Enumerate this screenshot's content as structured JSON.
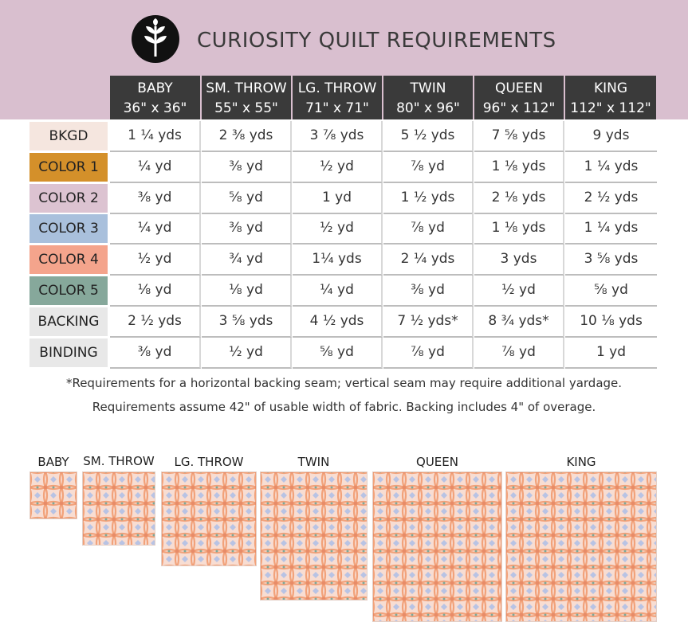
{
  "header": {
    "title": "CURIOSITY QUILT REQUIREMENTS"
  },
  "table": {
    "columns": [
      {
        "name": "BABY",
        "size": "36\" x 36\""
      },
      {
        "name": "SM. THROW",
        "size": "55\" x 55\""
      },
      {
        "name": "LG. THROW",
        "size": "71\" x 71\""
      },
      {
        "name": "TWIN",
        "size": "80\" x 96\""
      },
      {
        "name": "QUEEN",
        "size": "96\" x 112\""
      },
      {
        "name": "KING",
        "size": "112\" x 112\""
      }
    ],
    "rows": [
      {
        "label": "BKGD",
        "values": [
          "1 ¼ yds",
          "2 ⅜ yds",
          "3 ⅞ yds",
          "5 ½ yds",
          "7 ⅝ yds",
          "9 yds"
        ]
      },
      {
        "label": "COLOR 1",
        "values": [
          "¼ yd",
          "⅜ yd",
          "½ yd",
          "⅞ yd",
          "1 ⅛ yds",
          "1 ¼ yds"
        ]
      },
      {
        "label": "COLOR 2",
        "values": [
          "⅜ yd",
          "⅝ yd",
          "1 yd",
          "1 ½ yds",
          "2 ⅛ yds",
          "2 ½ yds"
        ]
      },
      {
        "label": "COLOR 3",
        "values": [
          "¼ yd",
          "⅜ yd",
          "½ yd",
          "⅞ yd",
          "1 ⅛ yds",
          "1 ¼ yds"
        ]
      },
      {
        "label": "COLOR 4",
        "values": [
          "½ yd",
          "¾ yd",
          "1¼ yds",
          "2 ¼ yds",
          "3 yds",
          "3 ⅝ yds"
        ]
      },
      {
        "label": "COLOR 5",
        "values": [
          "⅛ yd",
          "⅛ yd",
          "¼ yd",
          "⅜ yd",
          "½ yd",
          "⅝ yd"
        ]
      },
      {
        "label": "BACKING",
        "values": [
          "2 ½ yds",
          "3 ⅝ yds",
          "4 ½ yds",
          "7 ½ yds*",
          "8 ¾ yds*",
          "10 ⅛ yds"
        ]
      },
      {
        "label": "BINDING",
        "values": [
          "⅜ yd",
          "½ yd",
          "⅝ yd",
          "⅞ yd",
          "⅞ yd",
          "1 yd"
        ]
      }
    ]
  },
  "notes": [
    "*Requirements for a horizontal backing seam; vertical seam may require additional yardage.",
    "Requirements assume 42\" of usable width of fabric. Backing includes 4\" of overage."
  ],
  "quilts": [
    {
      "label": "BABY"
    },
    {
      "label": "SM. THROW"
    },
    {
      "label": "LG. THROW"
    },
    {
      "label": "TWIN"
    },
    {
      "label": "QUEEN"
    },
    {
      "label": "KING"
    }
  ]
}
